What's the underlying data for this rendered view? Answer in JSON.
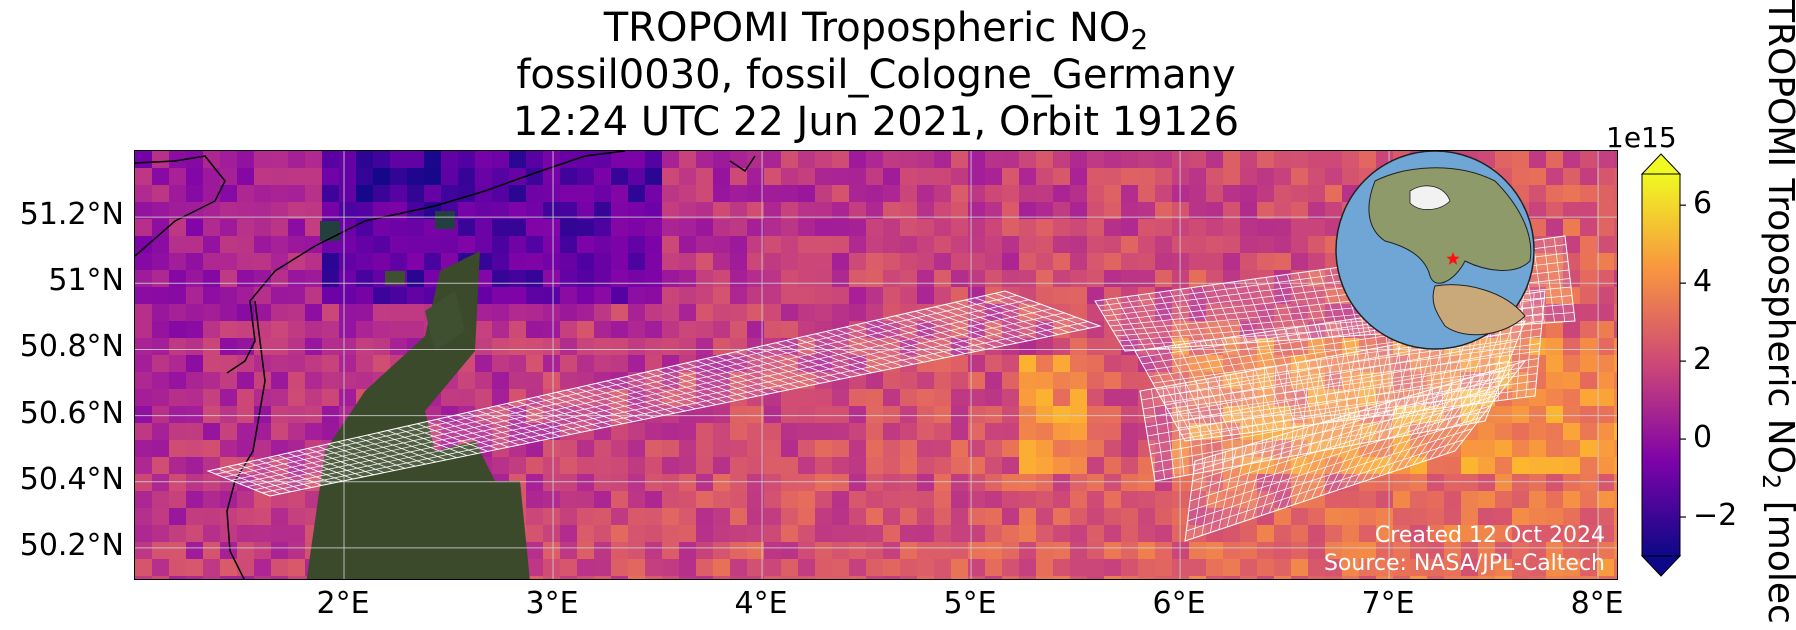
{
  "title": {
    "line1_prefix": "TROPOMI Tropospheric NO",
    "line1_sub": "2",
    "line2": "fossil0030, fossil_Cologne_Germany",
    "line3": "12:24 UTC 22 Jun 2021, Orbit 19126"
  },
  "map": {
    "lat_labels": [
      "51.2°N",
      "51°N",
      "50.8°N",
      "50.6°N",
      "50.4°N",
      "50.2°N"
    ],
    "lon_labels": [
      "2°E",
      "3°E",
      "4°E",
      "5°E",
      "6°E",
      "7°E",
      "8°E"
    ],
    "lat_values": [
      51.2,
      51.0,
      50.8,
      50.6,
      50.4,
      50.2
    ],
    "lon_values": [
      2,
      3,
      4,
      5,
      6,
      7,
      8
    ],
    "lon_range": [
      1.0,
      8.1
    ],
    "lat_range": [
      50.1,
      51.4
    ],
    "target_marker": {
      "name": "Cologne",
      "lon": 6.95,
      "lat": 50.94,
      "color": "#ff1111"
    },
    "gridlines": true,
    "colormap": "plasma",
    "inset_globe": {
      "type": "orthographic",
      "marker_color": "#ff1111"
    },
    "credit_line1": "Created 12 Oct 2024",
    "credit_line2": "Source: NASA/JPL-Caltech"
  },
  "colorbar": {
    "exponent": "1e15",
    "ticks": [
      "6",
      "4",
      "2",
      "0",
      "−2"
    ],
    "tick_values": [
      6,
      4,
      2,
      0,
      -2
    ],
    "range": [
      -3,
      6.8
    ],
    "label_prefix": "TROPOMI Tropospheric NO",
    "label_sub": "2",
    "label_suffix": " [molec",
    "extend": "both"
  },
  "colors": {
    "high": "#f0f921",
    "mid_high": "#f89540",
    "mid": "#cc4778",
    "low": "#7e03a8",
    "lowest": "#0d0887",
    "marker": "#ff1111"
  }
}
